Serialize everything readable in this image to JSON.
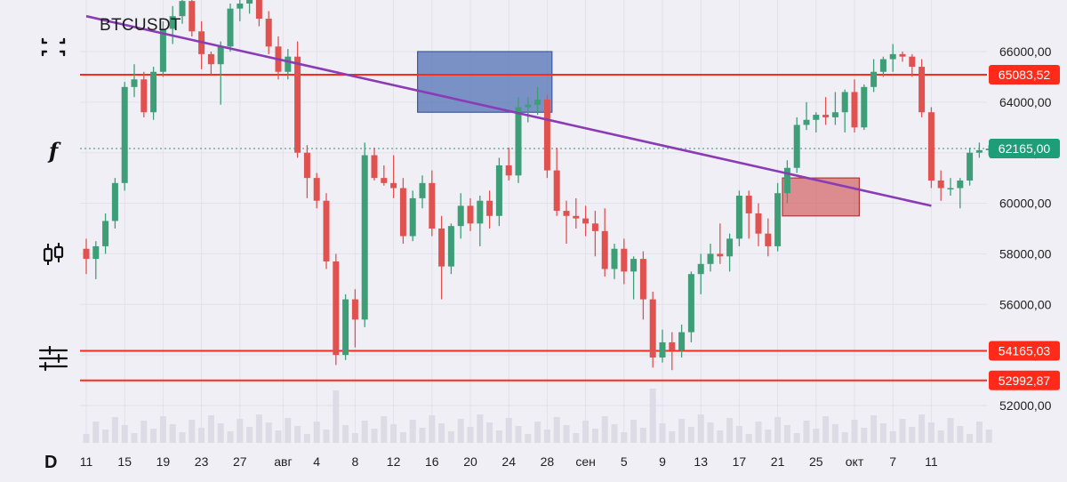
{
  "header": {
    "symbol": "BTCUSDT",
    "interval": "D"
  },
  "toolbar": [
    {
      "icon": "fullscreen-icon"
    },
    {
      "icon": "indicators-icon"
    },
    {
      "icon": "chart-type-candles-icon"
    },
    {
      "icon": "settings-sliders-icon"
    }
  ],
  "colors": {
    "up": "#3d9e78",
    "down": "#e05250",
    "level": "#ff2a1a",
    "trendline": "#8a3cb5",
    "supply_zone": "#5b79b9",
    "demand_zone": "#cf4a4a",
    "last_price": "#1d9e78",
    "background": "#f0eff5"
  },
  "chart_data": {
    "type": "candlestick",
    "symbol": "BTCUSDT",
    "timeframe": "D",
    "ylim": [
      51000,
      67000
    ],
    "y_ticks": [
      "66000,00",
      "64000,00",
      "62000,00",
      "60000,00",
      "58000,00",
      "56000,00",
      "54000,00",
      "52000,00"
    ],
    "x_ticks": [
      "11",
      "15",
      "19",
      "23",
      "27",
      "авг",
      "4",
      "8",
      "12",
      "16",
      "20",
      "24",
      "28",
      "сен",
      "5",
      "9",
      "13",
      "17",
      "21",
      "25",
      "окт",
      "7",
      "11"
    ],
    "price_tags": [
      {
        "label": "65083,52",
        "value": 65083.52,
        "kind": "level"
      },
      {
        "label": "62165,00",
        "value": 62165.0,
        "kind": "last"
      },
      {
        "label": "54165,03",
        "value": 54165.03,
        "kind": "level"
      },
      {
        "label": "52992,87",
        "value": 52992.87,
        "kind": "level"
      }
    ],
    "horizontal_levels": [
      65083.52,
      54165.03,
      52992.87
    ],
    "trendline": {
      "start": {
        "day": 0,
        "price": 67400
      },
      "end": {
        "day": 88,
        "price": 59900
      }
    },
    "zones": [
      {
        "kind": "supply",
        "day_start": 34.5,
        "day_end": 48.5,
        "price_top": 66000,
        "price_bottom": 63600
      },
      {
        "kind": "demand",
        "day_start": 72.5,
        "day_end": 80.5,
        "price_top": 61000,
        "price_bottom": 59500
      }
    ],
    "candles": [
      [
        58200,
        58600,
        57200,
        57800
      ],
      [
        57800,
        58500,
        57000,
        58300
      ],
      [
        58300,
        59600,
        58000,
        59300
      ],
      [
        59300,
        61000,
        59000,
        60800
      ],
      [
        60800,
        64800,
        60500,
        64600
      ],
      [
        64600,
        65500,
        64200,
        64900
      ],
      [
        64900,
        65200,
        63400,
        63600
      ],
      [
        63600,
        65400,
        63300,
        65200
      ],
      [
        65200,
        67200,
        65000,
        66900
      ],
      [
        66900,
        67800,
        66300,
        67400
      ],
      [
        67400,
        68300,
        67100,
        68000
      ],
      [
        68000,
        68600,
        66600,
        66800
      ],
      [
        66800,
        67200,
        65300,
        65900
      ],
      [
        65900,
        66000,
        65100,
        65500
      ],
      [
        65500,
        66400,
        63900,
        66200
      ],
      [
        66200,
        67900,
        66000,
        67700
      ],
      [
        67700,
        68200,
        67200,
        67900
      ],
      [
        67900,
        69400,
        67500,
        69200
      ],
      [
        69200,
        70000,
        67000,
        67300
      ],
      [
        67300,
        67600,
        65900,
        66200
      ],
      [
        66200,
        66600,
        64900,
        65200
      ],
      [
        65200,
        66100,
        64900,
        65800
      ],
      [
        65800,
        66400,
        61800,
        62000
      ],
      [
        62000,
        62300,
        60200,
        61000
      ],
      [
        61000,
        61200,
        59800,
        60100
      ],
      [
        60100,
        60400,
        57400,
        57700
      ],
      [
        57700,
        58000,
        53600,
        54000
      ],
      [
        54000,
        56400,
        53800,
        56200
      ],
      [
        56200,
        56600,
        54300,
        55400
      ],
      [
        55400,
        62400,
        55100,
        61900
      ],
      [
        61900,
        62200,
        60900,
        61000
      ],
      [
        61000,
        61500,
        60700,
        60800
      ],
      [
        60800,
        61900,
        60200,
        60600
      ],
      [
        60600,
        61000,
        58400,
        58700
      ],
      [
        58700,
        60500,
        58500,
        60200
      ],
      [
        60200,
        61100,
        59800,
        60800
      ],
      [
        60800,
        61300,
        58700,
        59000
      ],
      [
        59000,
        59500,
        56200,
        57500
      ],
      [
        57500,
        59200,
        57200,
        59100
      ],
      [
        59100,
        60400,
        58600,
        59900
      ],
      [
        59900,
        60200,
        58900,
        59200
      ],
      [
        59200,
        60300,
        58300,
        60100
      ],
      [
        60100,
        60500,
        59000,
        59500
      ],
      [
        59500,
        61800,
        59100,
        61500
      ],
      [
        61500,
        62200,
        60900,
        61100
      ],
      [
        61100,
        64200,
        60800,
        63800
      ],
      [
        63800,
        64200,
        63200,
        63900
      ],
      [
        63900,
        64600,
        63500,
        64100
      ],
      [
        64100,
        64300,
        61000,
        61300
      ],
      [
        61300,
        62200,
        59500,
        59700
      ],
      [
        59700,
        60100,
        58400,
        59500
      ],
      [
        59500,
        60200,
        59000,
        59400
      ],
      [
        59400,
        59900,
        58700,
        59200
      ],
      [
        59200,
        59700,
        57900,
        58900
      ],
      [
        58900,
        59800,
        57100,
        57400
      ],
      [
        57400,
        58400,
        57000,
        58200
      ],
      [
        58200,
        58600,
        56800,
        57300
      ],
      [
        57300,
        57900,
        56200,
        57800
      ],
      [
        57800,
        58100,
        55400,
        56200
      ],
      [
        56200,
        56500,
        53500,
        53900
      ],
      [
        53900,
        55000,
        53700,
        54500
      ],
      [
        54500,
        54900,
        53400,
        54200
      ],
      [
        54200,
        55200,
        53900,
        54900
      ],
      [
        54900,
        57300,
        54500,
        57200
      ],
      [
        57200,
        58000,
        56400,
        57600
      ],
      [
        57600,
        58400,
        57300,
        58000
      ],
      [
        58000,
        59200,
        57600,
        57900
      ],
      [
        57900,
        58800,
        57300,
        58600
      ],
      [
        58600,
        60500,
        58300,
        60300
      ],
      [
        60300,
        60500,
        58600,
        59600
      ],
      [
        59600,
        60000,
        58300,
        58800
      ],
      [
        58800,
        59400,
        57900,
        58300
      ],
      [
        58300,
        60800,
        58100,
        60400
      ],
      [
        60400,
        61700,
        60000,
        61400
      ],
      [
        61400,
        63400,
        61200,
        63100
      ],
      [
        63100,
        64000,
        62900,
        63300
      ],
      [
        63300,
        63600,
        62800,
        63500
      ],
      [
        63500,
        64200,
        63100,
        63400
      ],
      [
        63400,
        64400,
        63100,
        63600
      ],
      [
        63600,
        64500,
        62800,
        64400
      ],
      [
        64400,
        64900,
        62800,
        63000
      ],
      [
        63000,
        64700,
        62900,
        64600
      ],
      [
        64600,
        65700,
        64400,
        65200
      ],
      [
        65200,
        65800,
        65000,
        65700
      ],
      [
        65700,
        66300,
        65200,
        65900
      ],
      [
        65900,
        66000,
        65600,
        65800
      ],
      [
        65800,
        65900,
        65000,
        65400
      ],
      [
        65400,
        65700,
        63400,
        63600
      ],
      [
        63600,
        63800,
        60600,
        60900
      ],
      [
        60900,
        61300,
        60100,
        60600
      ],
      [
        60600,
        61000,
        60300,
        60600
      ],
      [
        60600,
        61000,
        59800,
        60900
      ],
      [
        60900,
        62200,
        60700,
        62000
      ],
      [
        62000,
        62400,
        61800,
        62100
      ],
      [
        62100,
        62300,
        61900,
        62165
      ]
    ]
  }
}
